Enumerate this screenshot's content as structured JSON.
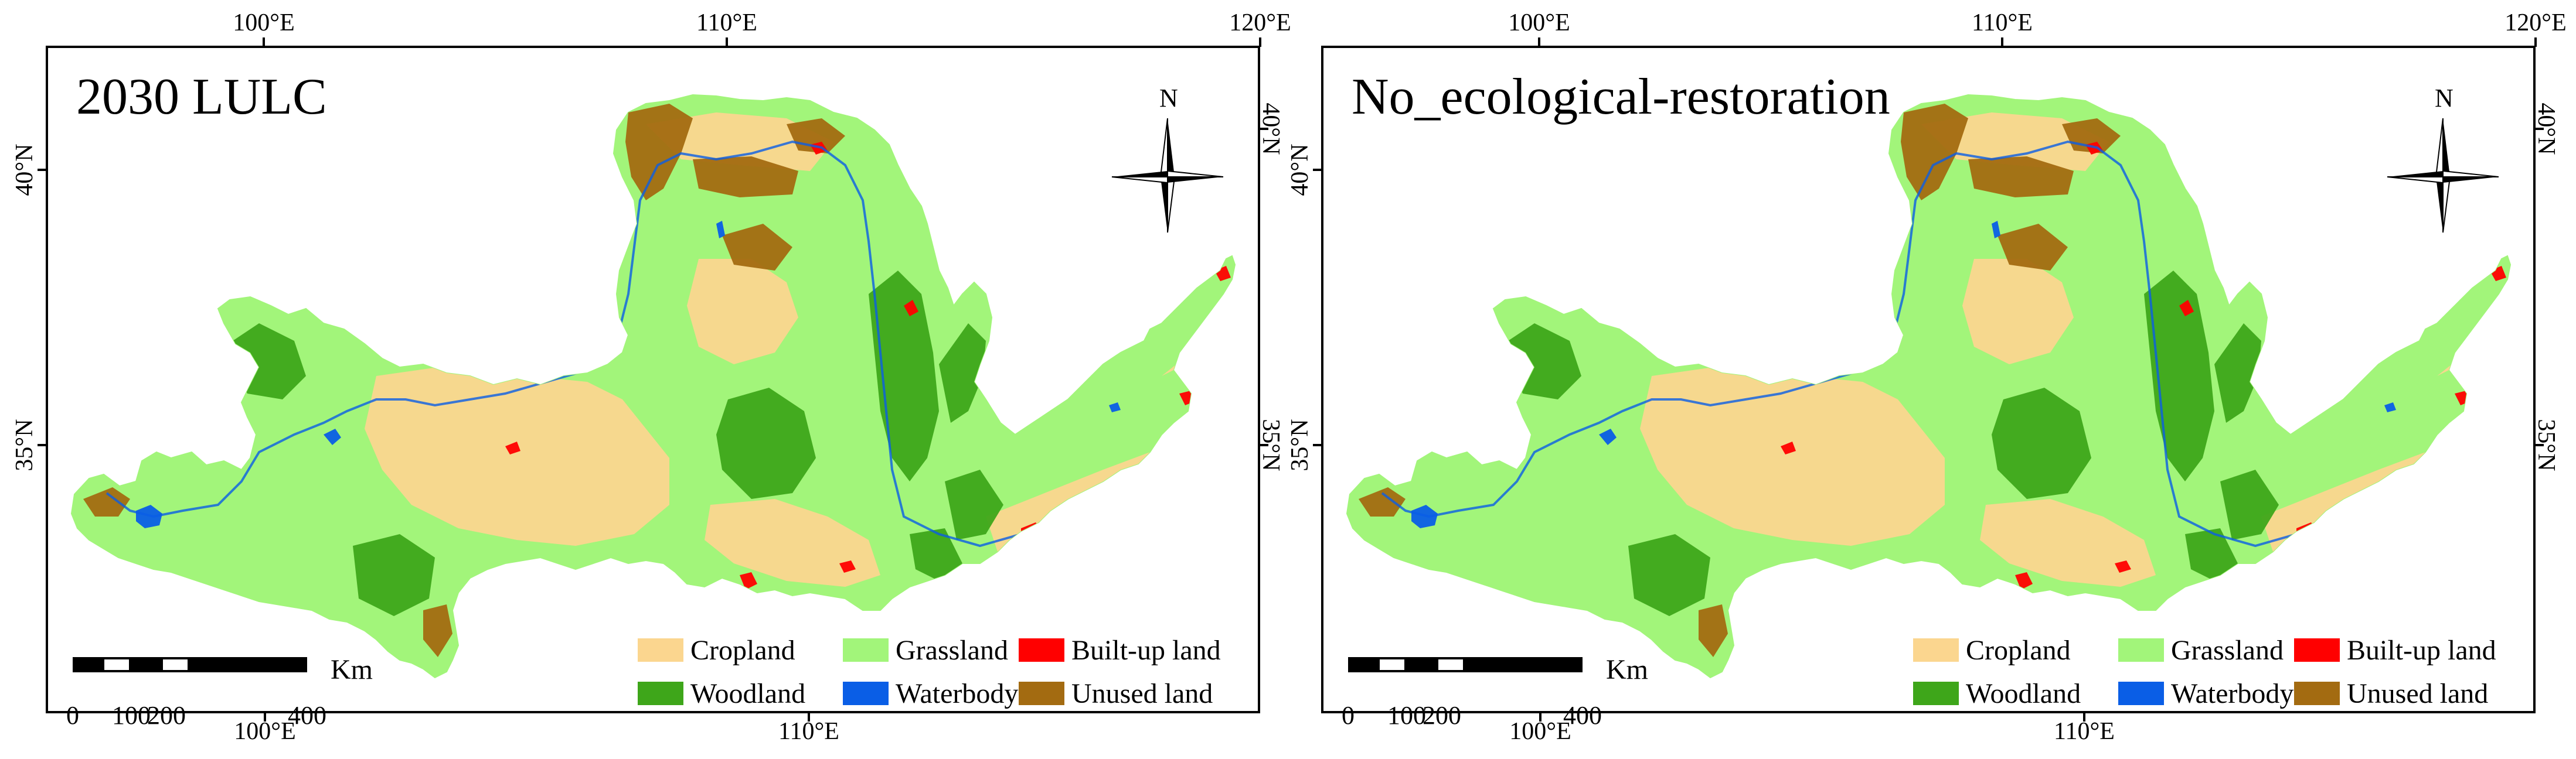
{
  "panels": [
    {
      "title": "2030 LULC"
    },
    {
      "title": "No_ecological-restoration"
    }
  ],
  "axes": {
    "top_ticks": [
      "100°E",
      "110°E",
      "120°E"
    ],
    "bottom_ticks": [
      "100°E",
      "110°E"
    ],
    "left_ticks": [
      "40°N",
      "35°N"
    ],
    "right_ticks": [
      "40°N",
      "35°N"
    ]
  },
  "north_arrow": {
    "label": "N",
    "icon": "north-arrow-icon"
  },
  "scalebar": {
    "labels": [
      "0",
      "100",
      "200",
      "400"
    ],
    "unit": "Km"
  },
  "legend": [
    {
      "label": "Cropland",
      "color": "#fbd68f"
    },
    {
      "label": "Grassland",
      "color": "#a2f57a"
    },
    {
      "label": "Built-up land",
      "color": "#ff0000"
    },
    {
      "label": "Woodland",
      "color": "#3ea61a"
    },
    {
      "label": "Waterbody",
      "color": "#0a5ee6"
    },
    {
      "label": "Unused land",
      "color": "#a36b11"
    }
  ]
}
